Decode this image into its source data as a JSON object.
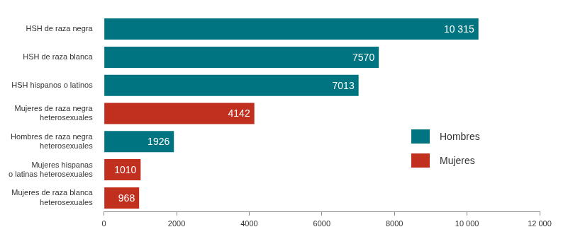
{
  "chart_data": {
    "type": "bar",
    "orientation": "horizontal",
    "categories": [
      "HSH de raza negra",
      "HSH de raza blanca",
      "HSH hispanos o latinos",
      "Mujeres de raza negra\nheterosexuales",
      "Hombres de raza negra\nheterosexuales",
      "Mujeres hispanas\no latinas heterosexuales",
      "Mujeres de raza blanca\nheterosexuales"
    ],
    "series": [
      {
        "name": "Hombres",
        "color": "#007481",
        "values": [
          10315,
          7570,
          7013,
          null,
          1926,
          null,
          null
        ],
        "value_labels": [
          "10 315",
          "7570",
          "7013",
          null,
          "1926",
          null,
          null
        ]
      },
      {
        "name": "Mujeres",
        "color": "#c1301f",
        "values": [
          null,
          null,
          null,
          4142,
          null,
          1010,
          968
        ],
        "value_labels": [
          null,
          null,
          null,
          "4142",
          null,
          "1010",
          "968"
        ]
      }
    ],
    "xlim": [
      0,
      12000
    ],
    "xticks": [
      0,
      2000,
      4000,
      6000,
      8000,
      {
        "value": 10000,
        "label": "10 000"
      },
      {
        "value": 12000,
        "label": "12 000"
      }
    ],
    "grid": false,
    "legend": "right",
    "data_labels": true
  }
}
